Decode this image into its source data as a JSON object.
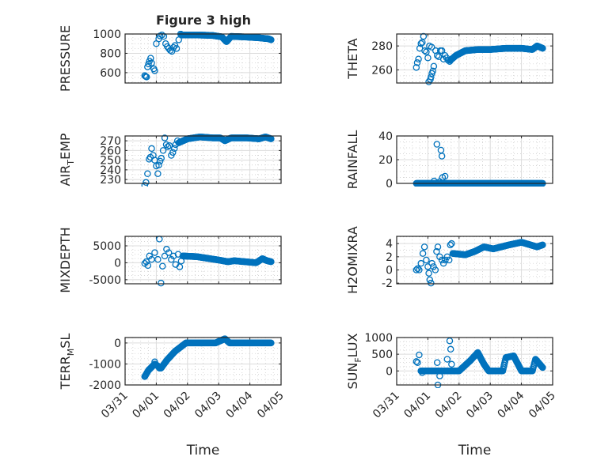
{
  "title": "Figure 3 high",
  "colors": {
    "marker": "#0072BD",
    "axis": "#262626",
    "grid": "#dcdcdc",
    "background": "#ffffff"
  },
  "chart_data": [
    {
      "type": "scatter",
      "id": "pressure",
      "ylabel": {
        "main": "PRESSURE"
      },
      "xlabel": "",
      "ylim": [
        493,
        1000
      ],
      "yticks": [
        600,
        800,
        1000
      ],
      "xlim": [
        0,
        5
      ],
      "scatter": [
        [
          0.63,
          570
        ],
        [
          0.66,
          560
        ],
        [
          0.69,
          555
        ],
        [
          0.72,
          660
        ],
        [
          0.75,
          690
        ],
        [
          0.78,
          720
        ],
        [
          0.82,
          750
        ],
        [
          0.85,
          700
        ],
        [
          0.92,
          640
        ],
        [
          0.95,
          620
        ],
        [
          1.0,
          900
        ],
        [
          1.08,
          950
        ],
        [
          1.12,
          980
        ],
        [
          1.18,
          990
        ],
        [
          1.24,
          975
        ],
        [
          1.3,
          900
        ],
        [
          1.35,
          870
        ],
        [
          1.4,
          850
        ],
        [
          1.45,
          830
        ],
        [
          1.5,
          820
        ],
        [
          1.55,
          860
        ],
        [
          1.6,
          880
        ],
        [
          1.65,
          850
        ],
        [
          1.72,
          940
        ],
        [
          1.78,
          1000
        ]
      ],
      "trace": [
        [
          1.8,
          990
        ],
        [
          2.3,
          990
        ],
        [
          2.8,
          985
        ],
        [
          3.1,
          970
        ],
        [
          3.25,
          920
        ],
        [
          3.4,
          975
        ],
        [
          3.8,
          970
        ],
        [
          4.3,
          960
        ],
        [
          4.6,
          950
        ],
        [
          4.68,
          940
        ]
      ]
    },
    {
      "type": "scatter",
      "id": "theta",
      "ylabel": {
        "main": "THETA"
      },
      "xlabel": "",
      "ylim": [
        249,
        290
      ],
      "yticks": [
        260,
        280
      ],
      "xlim": [
        0,
        5
      ],
      "scatter": [
        [
          0.63,
          262
        ],
        [
          0.66,
          266
        ],
        [
          0.7,
          269
        ],
        [
          0.74,
          278
        ],
        [
          0.78,
          282
        ],
        [
          0.82,
          283
        ],
        [
          0.86,
          288
        ],
        [
          0.9,
          276
        ],
        [
          0.95,
          275
        ],
        [
          1.0,
          270
        ],
        [
          1.03,
          250
        ],
        [
          1.08,
          252
        ],
        [
          1.1,
          254
        ],
        [
          1.13,
          257
        ],
        [
          1.16,
          259
        ],
        [
          1.19,
          263
        ],
        [
          1.05,
          280
        ],
        [
          1.12,
          279
        ],
        [
          1.25,
          276
        ],
        [
          1.3,
          272
        ],
        [
          1.35,
          271
        ],
        [
          1.4,
          276
        ],
        [
          1.45,
          276
        ],
        [
          1.5,
          269
        ],
        [
          1.55,
          272
        ],
        [
          1.6,
          270
        ],
        [
          1.65,
          268
        ],
        [
          1.7,
          267
        ]
      ],
      "trace": [
        [
          1.72,
          268
        ],
        [
          1.9,
          272
        ],
        [
          2.2,
          276
        ],
        [
          2.6,
          277
        ],
        [
          3.0,
          277
        ],
        [
          3.5,
          278
        ],
        [
          4.0,
          278
        ],
        [
          4.35,
          277
        ],
        [
          4.5,
          280
        ],
        [
          4.68,
          278
        ]
      ]
    },
    {
      "type": "scatter",
      "id": "air_temp",
      "ylabel": {
        "main": "AIR",
        "sub": "T",
        "rest": "EMP"
      },
      "xlabel": "",
      "ylim": [
        226,
        275
      ],
      "yticks": [
        230,
        240,
        250,
        260,
        270
      ],
      "xlim": [
        0,
        5
      ],
      "scatter": [
        [
          0.63,
          224
        ],
        [
          0.67,
          227
        ],
        [
          0.72,
          236
        ],
        [
          0.77,
          251
        ],
        [
          0.81,
          253
        ],
        [
          0.85,
          262
        ],
        [
          0.9,
          255
        ],
        [
          0.95,
          250
        ],
        [
          1.0,
          244
        ],
        [
          1.05,
          236
        ],
        [
          1.08,
          245
        ],
        [
          1.12,
          249
        ],
        [
          1.16,
          252
        ],
        [
          1.22,
          260
        ],
        [
          1.27,
          273
        ],
        [
          1.32,
          266
        ],
        [
          1.37,
          264
        ],
        [
          1.42,
          265
        ],
        [
          1.48,
          255
        ],
        [
          1.53,
          258
        ],
        [
          1.58,
          262
        ],
        [
          1.62,
          266
        ],
        [
          1.68,
          270
        ]
      ],
      "trace": [
        [
          1.72,
          268
        ],
        [
          2.0,
          272
        ],
        [
          2.4,
          274
        ],
        [
          2.8,
          273
        ],
        [
          3.05,
          273
        ],
        [
          3.2,
          270
        ],
        [
          3.4,
          273
        ],
        [
          3.9,
          273
        ],
        [
          4.3,
          272
        ],
        [
          4.5,
          274
        ],
        [
          4.68,
          272
        ]
      ]
    },
    {
      "type": "scatter",
      "id": "rainfall",
      "ylabel": {
        "main": "RAINFALL"
      },
      "xlabel": "",
      "ylim": [
        0,
        40
      ],
      "yticks": [
        0,
        20,
        40
      ],
      "xlim": [
        0,
        5
      ],
      "scatter": [
        [
          1.29,
          33
        ],
        [
          1.42,
          28
        ],
        [
          1.45,
          23
        ],
        [
          1.47,
          5
        ],
        [
          1.55,
          6
        ],
        [
          1.2,
          2
        ],
        [
          1.38,
          1.5
        ]
      ],
      "trace": [
        [
          0.63,
          0
        ],
        [
          4.68,
          0
        ]
      ]
    },
    {
      "type": "scatter",
      "id": "mixdepth",
      "ylabel": {
        "main": "MIXDEPTH"
      },
      "xlabel": "",
      "ylim": [
        -6200,
        7800
      ],
      "yticks": [
        -5000,
        0,
        5000
      ],
      "xlim": [
        0,
        5
      ],
      "scatter": [
        [
          0.63,
          -200
        ],
        [
          0.68,
          300
        ],
        [
          0.73,
          -800
        ],
        [
          0.78,
          2000
        ],
        [
          0.85,
          1000
        ],
        [
          0.95,
          3000
        ],
        [
          1.05,
          1000
        ],
        [
          1.1,
          7000
        ],
        [
          1.15,
          -6000
        ],
        [
          1.2,
          -1000
        ],
        [
          1.27,
          2000
        ],
        [
          1.33,
          4000
        ],
        [
          1.4,
          3000
        ],
        [
          1.48,
          1000
        ],
        [
          1.55,
          2000
        ],
        [
          1.62,
          -500
        ],
        [
          1.7,
          2500
        ],
        [
          1.75,
          -1200
        ],
        [
          1.8,
          500
        ]
      ],
      "trace": [
        [
          1.85,
          2000
        ],
        [
          2.3,
          1800
        ],
        [
          3.0,
          800
        ],
        [
          3.3,
          300
        ],
        [
          3.5,
          600
        ],
        [
          4.2,
          0
        ],
        [
          4.4,
          1200
        ],
        [
          4.55,
          600
        ],
        [
          4.68,
          300
        ]
      ]
    },
    {
      "type": "scatter",
      "id": "h2omixra",
      "ylabel": {
        "main": "H2OMIXRA"
      },
      "xlabel": "",
      "ylim": [
        -2.1,
        5.1
      ],
      "yticks": [
        -2,
        0,
        2,
        4
      ],
      "xlim": [
        0,
        5
      ],
      "scatter": [
        [
          0.63,
          0
        ],
        [
          0.67,
          0.2
        ],
        [
          0.72,
          0
        ],
        [
          0.78,
          1
        ],
        [
          0.84,
          2.5
        ],
        [
          0.89,
          3.5
        ],
        [
          0.95,
          1.5
        ],
        [
          1.0,
          0.5
        ],
        [
          1.03,
          -0.5
        ],
        [
          1.06,
          -1.5
        ],
        [
          1.1,
          -2
        ],
        [
          1.13,
          1
        ],
        [
          1.18,
          0.5
        ],
        [
          1.24,
          0
        ],
        [
          1.28,
          2.8
        ],
        [
          1.32,
          3.5
        ],
        [
          1.38,
          2
        ],
        [
          1.45,
          1.5
        ],
        [
          1.5,
          1
        ],
        [
          1.56,
          1.5
        ],
        [
          1.62,
          2
        ],
        [
          1.68,
          1.5
        ],
        [
          1.72,
          3.8
        ],
        [
          1.76,
          4
        ]
      ],
      "trace": [
        [
          1.8,
          2.5
        ],
        [
          2.2,
          2.3
        ],
        [
          2.5,
          2.8
        ],
        [
          2.8,
          3.5
        ],
        [
          3.1,
          3.2
        ],
        [
          3.6,
          3.8
        ],
        [
          4.0,
          4.2
        ],
        [
          4.5,
          3.5
        ],
        [
          4.68,
          3.8
        ]
      ]
    },
    {
      "type": "scatter",
      "id": "terr_msl",
      "ylabel": {
        "main": "TERR",
        "sub": "M",
        "rest": "SL"
      },
      "xlabel": "Time",
      "ylim": [
        -2000,
        260
      ],
      "yticks": [
        -2000,
        -1000,
        0
      ],
      "xlim": [
        0,
        5
      ],
      "scatter": [
        [
          0.63,
          -1600
        ],
        [
          0.95,
          -900
        ],
        [
          1.1,
          -1200
        ]
      ],
      "trace": [
        [
          0.63,
          -1600
        ],
        [
          0.75,
          -1300
        ],
        [
          0.95,
          -1000
        ],
        [
          1.15,
          -1200
        ],
        [
          1.35,
          -800
        ],
        [
          1.6,
          -400
        ],
        [
          1.95,
          0
        ],
        [
          2.9,
          0
        ],
        [
          3.2,
          200
        ],
        [
          3.35,
          0
        ],
        [
          4.68,
          0
        ]
      ]
    },
    {
      "type": "scatter",
      "id": "sun_flux",
      "ylabel": {
        "main": "SUN",
        "sub": "F",
        "rest": "LUX"
      },
      "xlabel": "Time",
      "ylim": [
        -420,
        1000
      ],
      "yticks": [
        0,
        500,
        1000
      ],
      "xlim": [
        0,
        5
      ],
      "scatter": [
        [
          0.63,
          280
        ],
        [
          0.67,
          250
        ],
        [
          0.72,
          480
        ],
        [
          0.78,
          0
        ],
        [
          0.82,
          -50
        ],
        [
          1.3,
          250
        ],
        [
          1.32,
          -420
        ],
        [
          1.38,
          -150
        ],
        [
          1.62,
          350
        ],
        [
          1.7,
          900
        ],
        [
          1.73,
          650
        ],
        [
          1.76,
          200
        ]
      ],
      "trace": [
        [
          0.78,
          0
        ],
        [
          2.0,
          0
        ],
        [
          2.35,
          300
        ],
        [
          2.6,
          550
        ],
        [
          2.8,
          200
        ],
        [
          2.95,
          0
        ],
        [
          3.4,
          0
        ],
        [
          3.5,
          400
        ],
        [
          3.75,
          450
        ],
        [
          4.0,
          0
        ],
        [
          4.35,
          0
        ],
        [
          4.45,
          350
        ],
        [
          4.68,
          100
        ]
      ]
    }
  ],
  "xticks": {
    "values": [
      0,
      1,
      2,
      3,
      4,
      5
    ],
    "labels": [
      "03/31",
      "04/01",
      "04/02",
      "04/03",
      "04/04",
      "04/05"
    ]
  }
}
